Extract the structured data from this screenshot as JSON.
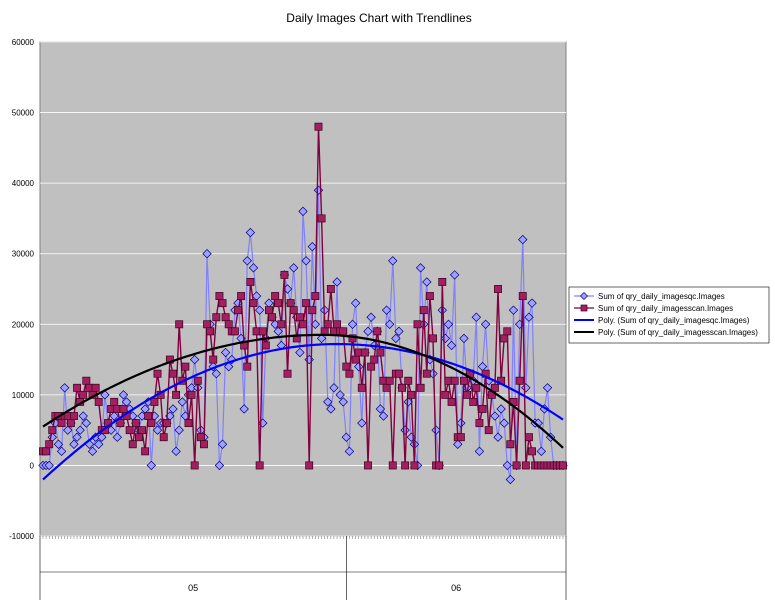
{
  "chart_data": {
    "type": "line",
    "title": "Daily Images Chart with Trendlines",
    "xlabel": "",
    "ylabel": "",
    "ylim": [
      -10000,
      60000
    ],
    "yticks": [
      -10000,
      0,
      10000,
      20000,
      30000,
      40000,
      50000,
      60000
    ],
    "ytick_labels": [
      "-10000",
      "0",
      "10000",
      "20000",
      "30000",
      "40000",
      "50000",
      "60000"
    ],
    "grid": true,
    "legend_position": "right",
    "months": [
      "05",
      "06"
    ],
    "month_split_index": 98,
    "series": [
      {
        "name": "Sum of qry_daily_imagesqc.Images",
        "color": "#8080ff",
        "marker": "diamond",
        "values": [
          0,
          0,
          0,
          4000,
          6000,
          3000,
          2000,
          11000,
          5000,
          6000,
          3000,
          4000,
          5000,
          7000,
          6000,
          3000,
          2000,
          4000,
          3000,
          4000,
          10000,
          6000,
          5000,
          7000,
          4000,
          6000,
          10000,
          9000,
          8000,
          7000,
          6000,
          5000,
          7000,
          8000,
          9000,
          0,
          7000,
          5000,
          6000,
          6000,
          6000,
          7000,
          8000,
          2000,
          5000,
          9000,
          7000,
          10000,
          11000,
          15000,
          11000,
          5000,
          4000,
          30000,
          20000,
          14000,
          13000,
          0,
          3000,
          16000,
          14000,
          15000,
          22000,
          23000,
          18000,
          8000,
          29000,
          33000,
          28000,
          24000,
          22000,
          6000,
          18000,
          23000,
          21000,
          20000,
          19000,
          17000,
          27000,
          25000,
          23000,
          28000,
          21000,
          16000,
          36000,
          29000,
          15000,
          31000,
          20000,
          39000,
          18000,
          22000,
          9000,
          8000,
          11000,
          26000,
          10000,
          9000,
          4000,
          2000,
          20000,
          23000,
          14000,
          6000,
          16000,
          19000,
          21000,
          17000,
          19000,
          8000,
          7000,
          22000,
          20000,
          29000,
          18000,
          19000,
          11000,
          5000,
          9000,
          4000,
          3000,
          0,
          28000,
          20000,
          26000,
          15000,
          13000,
          5000,
          0,
          22000,
          18000,
          20000,
          17000,
          27000,
          3000,
          6000,
          18000,
          11000,
          13000,
          12000,
          21000,
          2000,
          14000,
          20000,
          12000,
          10000,
          7000,
          4000,
          8000,
          6000,
          0,
          -2000,
          22000,
          0,
          20000,
          32000,
          11000,
          21000,
          23000,
          6000,
          6000,
          2000,
          8000,
          11000,
          4000,
          0,
          0,
          0,
          0
        ]
      },
      {
        "name": "Sum of qry_daily_imagesscan.Images",
        "color": "#800040",
        "marker": "square",
        "values": [
          2000,
          2000,
          3000,
          5000,
          7000,
          7000,
          6000,
          7000,
          7000,
          6000,
          7000,
          11000,
          9000,
          10000,
          12000,
          11000,
          10000,
          11000,
          9000,
          5000,
          5000,
          6000,
          8000,
          9000,
          8000,
          6000,
          8000,
          7000,
          5000,
          3000,
          6000,
          4000,
          5000,
          2000,
          7000,
          6000,
          9000,
          13000,
          10000,
          4000,
          6000,
          15000,
          13000,
          10000,
          20000,
          12000,
          14000,
          6000,
          10000,
          0,
          12000,
          4000,
          3000,
          20000,
          19000,
          15000,
          21000,
          24000,
          23000,
          21000,
          20000,
          19000,
          19000,
          22000,
          24000,
          17000,
          14000,
          26000,
          23000,
          19000,
          0,
          19000,
          17000,
          22000,
          21000,
          24000,
          23000,
          20000,
          27000,
          13000,
          23000,
          22000,
          18000,
          21000,
          20000,
          23000,
          0,
          22000,
          24000,
          48000,
          35000,
          19000,
          20000,
          25000,
          19000,
          20000,
          19000,
          19000,
          14000,
          13000,
          18000,
          15000,
          16000,
          11000,
          16000,
          0,
          14000,
          15000,
          19000,
          16000,
          12000,
          11000,
          12000,
          0,
          13000,
          13000,
          11000,
          0,
          12000,
          10000,
          0,
          20000,
          11000,
          22000,
          13000,
          24000,
          18000,
          0,
          0,
          26000,
          10000,
          12000,
          9000,
          12000,
          4000,
          4000,
          12000,
          10000,
          13000,
          9000,
          11000,
          6000,
          8000,
          13000,
          5000,
          10000,
          11000,
          25000,
          12000,
          18000,
          19000,
          3000,
          9000,
          0,
          12000,
          24000,
          0,
          4000,
          2000,
          0,
          0,
          0,
          0,
          0,
          0,
          0,
          0,
          0,
          0
        ]
      }
    ],
    "trendlines": [
      {
        "name": "Poly. (Sum of qry_daily_imagesqc.Images)",
        "color": "#0000ff",
        "start": -2000,
        "peak": 17200,
        "peak_index": 95,
        "end": 6500
      },
      {
        "name": "Poly. (Sum of qry_daily_imagesscan.Images)",
        "color": "#000000",
        "start": 5500,
        "peak": 18500,
        "peak_index": 90,
        "end": 2500
      }
    ]
  }
}
